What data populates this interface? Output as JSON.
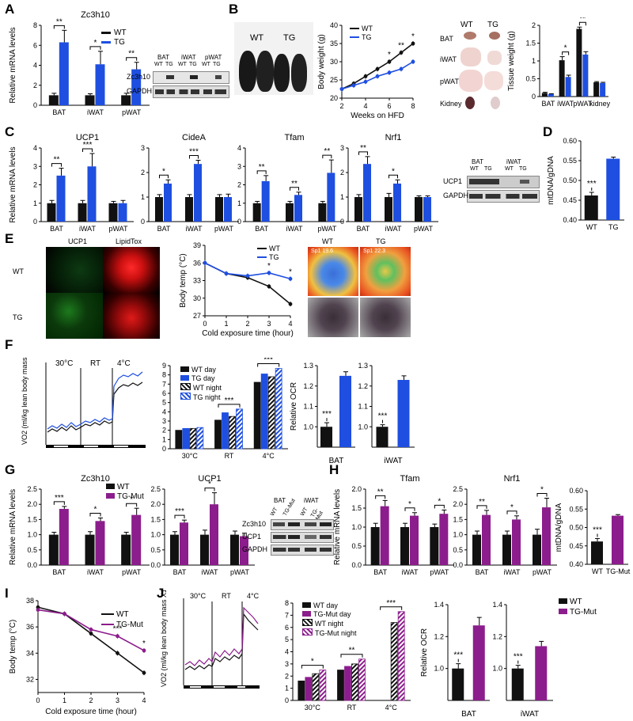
{
  "panels": {
    "A": {
      "letter": "A",
      "title": "Zc3h10",
      "ylabel": "Relative mRNA levels",
      "legend": [
        "WT",
        "TG"
      ],
      "blot": {
        "groups": [
          "BAT",
          "iWAT",
          "pWAT"
        ],
        "lanes": [
          "WT",
          "TG",
          "WT",
          "TG",
          "WT",
          "TG"
        ],
        "rows": [
          "Zc3h10",
          "GAPDH"
        ]
      }
    },
    "B": {
      "letter": "B",
      "photo_labels": [
        "WT",
        "TG"
      ],
      "tissue_labels_top": [
        "WT",
        "TG"
      ],
      "tissues": [
        "BAT",
        "iWAT",
        "pWAT",
        "Kidney"
      ]
    },
    "C": {
      "letter": "C",
      "ylabel": "Relative mRNA levels",
      "blot": {
        "groups": [
          "BAT",
          "iWAT"
        ],
        "lanes": [
          "WT",
          "TG",
          "WT",
          "TG"
        ],
        "rows": [
          "UCP1",
          "GAPDH"
        ]
      }
    },
    "D": {
      "letter": "D"
    },
    "E": {
      "letter": "E",
      "col_labels": [
        "UCP1",
        "LipidTox"
      ],
      "row_labels": [
        "WT",
        "TG"
      ],
      "thermal_labels": [
        "WT",
        "TG"
      ],
      "thermal_readouts": [
        "Sp1 19.6",
        "Sp1 22.3"
      ]
    },
    "F": {
      "letter": "F",
      "trace_ylabel": "VO2 (ml/kg lean body mass X10³)",
      "trace_conditions": [
        "30°C",
        "RT",
        "4°C"
      ],
      "bar_legend": [
        "WT day",
        "TG day",
        "WT night",
        "TG night"
      ]
    },
    "G": {
      "letter": "G",
      "ylabel": "Relative mRNA levels",
      "legend": [
        "WT",
        "TG-Mut"
      ],
      "blot": {
        "groups": [
          "BAT",
          "iWAT"
        ],
        "lanes": [
          "WT",
          "TG-Mut",
          "WT",
          "TG-Mut"
        ],
        "rows": [
          "Zc3h10",
          "UCP1",
          "GAPDH"
        ]
      }
    },
    "H": {
      "letter": "H",
      "ylabel": "Relative mRNA levels"
    },
    "I": {
      "letter": "I",
      "legend": [
        "WT",
        "TG-Mut"
      ]
    },
    "J": {
      "letter": "J",
      "trace_ylabel": "VO2 (ml/kg lean body mass X10³)",
      "trace_conditions": [
        "30°C",
        "RT",
        "4°C"
      ],
      "bar_legend": [
        "WT day",
        "TG-Mut day",
        "WT night",
        "TG-Mut night"
      ],
      "ocr_legend": [
        "WT",
        "TG-Mut"
      ]
    }
  },
  "colors": {
    "wt": "#111111",
    "tg": "#1f4fe0",
    "tgmut": "#8c1d8c"
  },
  "chart_data": [
    {
      "id": "A-zc3h10",
      "type": "bar",
      "title": "Zc3h10",
      "ylabel": "Relative mRNA levels",
      "categories": [
        "BAT",
        "iWAT",
        "pWAT"
      ],
      "ylim": [
        0,
        8
      ],
      "yticks": [
        0,
        2,
        4,
        6,
        8
      ],
      "series": [
        {
          "name": "WT",
          "values": [
            1,
            1,
            1
          ],
          "err": [
            0.2,
            0.15,
            0.2
          ]
        },
        {
          "name": "TG",
          "values": [
            6.3,
            4.1,
            3.6
          ],
          "err": [
            1.2,
            1.3,
            0.7
          ]
        }
      ],
      "significance": [
        "**",
        "*",
        "**"
      ]
    },
    {
      "id": "B-bodyweight",
      "type": "line",
      "xlabel": "Weeks on HFD",
      "ylabel": "Body weight (g)",
      "x": [
        2,
        3,
        4,
        5,
        6,
        7,
        8
      ],
      "xlim": [
        2,
        8
      ],
      "xticks": [
        2,
        4,
        6,
        8
      ],
      "ylim": [
        20,
        40
      ],
      "yticks": [
        20,
        25,
        30,
        35,
        40
      ],
      "series": [
        {
          "name": "WT",
          "values": [
            22.5,
            24.0,
            26.0,
            28.0,
            30.0,
            32.5,
            35.0
          ]
        },
        {
          "name": "TG",
          "values": [
            22.5,
            23.5,
            24.5,
            26.0,
            27.0,
            28.0,
            30.0
          ]
        }
      ],
      "significance_x": [
        6,
        7,
        8
      ],
      "significance": [
        "*",
        "**",
        "*"
      ]
    },
    {
      "id": "B-tissueweight",
      "type": "bar",
      "ylabel": "Tissue weight (g)",
      "categories": [
        "BAT",
        "iWAT",
        "pWAT",
        "kidney"
      ],
      "ylim": [
        0,
        2.0
      ],
      "yticks": [
        0,
        0.5,
        1.0,
        1.5,
        2.0
      ],
      "series": [
        {
          "name": "WT",
          "values": [
            0.1,
            1.02,
            1.9,
            0.4
          ],
          "err": [
            0.02,
            0.1,
            0.05,
            0.02
          ]
        },
        {
          "name": "TG",
          "values": [
            0.07,
            0.55,
            1.18,
            0.38
          ],
          "err": [
            0.01,
            0.05,
            0.08,
            0.02
          ]
        }
      ],
      "significance": [
        "",
        "*",
        "**",
        ""
      ]
    },
    {
      "id": "C-ucp1",
      "type": "bar",
      "title": "UCP1",
      "ylabel": "Relative mRNA levels",
      "categories": [
        "BAT",
        "iWAT",
        "pWAT"
      ],
      "ylim": [
        0,
        4
      ],
      "yticks": [
        0,
        1,
        2,
        3,
        4
      ],
      "series": [
        {
          "name": "WT",
          "values": [
            1,
            1,
            1
          ],
          "err": [
            0.15,
            0.15,
            0.1
          ]
        },
        {
          "name": "TG",
          "values": [
            2.5,
            3.0,
            1.0
          ],
          "err": [
            0.4,
            0.7,
            0.15
          ]
        }
      ],
      "significance": [
        "**",
        "***",
        ""
      ]
    },
    {
      "id": "C-cidea",
      "type": "bar",
      "title": "CideA",
      "categories": [
        "BAT",
        "iWAT",
        "pWAT"
      ],
      "ylim": [
        0,
        3
      ],
      "yticks": [
        0,
        1,
        2,
        3
      ],
      "series": [
        {
          "name": "WT",
          "values": [
            1,
            1,
            1
          ],
          "err": [
            0.1,
            0.1,
            0.1
          ]
        },
        {
          "name": "TG",
          "values": [
            1.55,
            2.35,
            1.0
          ],
          "err": [
            0.15,
            0.15,
            0.12
          ]
        }
      ],
      "significance": [
        "*",
        "***",
        ""
      ]
    },
    {
      "id": "C-tfam",
      "type": "bar",
      "title": "Tfam",
      "categories": [
        "BAT",
        "iWAT",
        "pWAT"
      ],
      "ylim": [
        0,
        4
      ],
      "yticks": [
        0,
        1,
        2,
        3,
        4
      ],
      "series": [
        {
          "name": "WT",
          "values": [
            1,
            1,
            1
          ],
          "err": [
            0.1,
            0.1,
            0.1
          ]
        },
        {
          "name": "TG",
          "values": [
            2.2,
            1.45,
            2.65
          ],
          "err": [
            0.3,
            0.15,
            0.7
          ]
        }
      ],
      "significance": [
        "**",
        "**",
        "**"
      ]
    },
    {
      "id": "C-nrf1",
      "type": "bar",
      "title": "Nrf1",
      "categories": [
        "BAT",
        "iWAT",
        "pWAT"
      ],
      "ylim": [
        0,
        3
      ],
      "yticks": [
        0,
        1,
        2,
        3
      ],
      "series": [
        {
          "name": "WT",
          "values": [
            1,
            1,
            1
          ],
          "err": [
            0.1,
            0.15,
            0.05
          ]
        },
        {
          "name": "TG",
          "values": [
            2.35,
            1.55,
            1.0
          ],
          "err": [
            0.3,
            0.15,
            0.05
          ]
        }
      ],
      "significance": [
        "**",
        "*",
        ""
      ]
    },
    {
      "id": "D-mtdna",
      "type": "bar",
      "ylabel": "mtDNA/gDNA",
      "categories": [
        "WT",
        "TG"
      ],
      "ylim": [
        0.4,
        0.6
      ],
      "yticks": [
        0.4,
        0.45,
        0.5,
        0.55,
        0.6
      ],
      "series": [
        {
          "name": "",
          "values": [
            0.462,
            0.555
          ],
          "err": [
            0.008,
            0.004
          ]
        }
      ],
      "significance": [
        "***"
      ]
    },
    {
      "id": "E-bodytemp",
      "type": "line",
      "xlabel": "Cold exposure time (hour)",
      "ylabel": "Body temp (°C)",
      "x": [
        0,
        1,
        2,
        3,
        4
      ],
      "xlim": [
        0,
        4
      ],
      "xticks": [
        0,
        1,
        2,
        3,
        4
      ],
      "ylim": [
        27,
        39
      ],
      "yticks": [
        27,
        30,
        33,
        36,
        39
      ],
      "series": [
        {
          "name": "WT",
          "values": [
            36.0,
            34.2,
            33.5,
            32.0,
            29.0
          ]
        },
        {
          "name": "TG",
          "values": [
            36.0,
            34.2,
            33.8,
            34.3,
            33.3
          ]
        }
      ],
      "significance_x": [
        3,
        4
      ],
      "significance": [
        "*",
        "*"
      ]
    },
    {
      "id": "F-vo2bars",
      "type": "bar",
      "categories": [
        "30°C",
        "RT",
        "4°C"
      ],
      "ylim": [
        0,
        9
      ],
      "yticks": [
        0,
        1,
        2,
        3,
        4,
        5,
        6,
        7,
        8,
        9
      ],
      "series": [
        {
          "name": "WT day",
          "values": [
            2.0,
            3.1,
            7.2
          ]
        },
        {
          "name": "TG day",
          "values": [
            2.2,
            3.9,
            8.1
          ]
        },
        {
          "name": "WT night",
          "values": [
            2.2,
            3.5,
            7.8
          ]
        },
        {
          "name": "TG night",
          "values": [
            2.3,
            4.3,
            8.7
          ]
        }
      ],
      "significance": [
        "",
        "***",
        "***"
      ]
    },
    {
      "id": "F-ocr-bat",
      "type": "bar",
      "ylabel": "Relative OCR",
      "xlabel": "BAT",
      "categories": [
        "WT",
        "TG"
      ],
      "ylim": [
        0.9,
        1.3
      ],
      "yticks": [
        1.0,
        1.1,
        1.2,
        1.3
      ],
      "series": [
        {
          "name": "",
          "values": [
            1.0,
            1.25
          ],
          "err": [
            0.02,
            0.02
          ]
        }
      ],
      "significance": [
        "***"
      ]
    },
    {
      "id": "F-ocr-iwat",
      "type": "bar",
      "xlabel": "iWAT",
      "categories": [
        "WT",
        "TG"
      ],
      "ylim": [
        0.9,
        1.3
      ],
      "yticks": [
        1.0,
        1.1,
        1.2,
        1.3
      ],
      "series": [
        {
          "name": "",
          "values": [
            1.0,
            1.23
          ],
          "err": [
            0.01,
            0.02
          ]
        }
      ],
      "significance": [
        "***"
      ]
    },
    {
      "id": "G-zc3h10",
      "type": "bar",
      "title": "Zc3h10",
      "ylabel": "Relative mRNA levels",
      "categories": [
        "BAT",
        "iWAT",
        "pWAT"
      ],
      "ylim": [
        0,
        2.5
      ],
      "yticks": [
        0,
        0.5,
        1.0,
        1.5,
        2.0,
        2.5
      ],
      "series": [
        {
          "name": "WT",
          "values": [
            1,
            1,
            1
          ],
          "err": [
            0.08,
            0.1,
            0.08
          ]
        },
        {
          "name": "TG-Mut",
          "values": [
            1.85,
            1.45,
            1.65
          ],
          "err": [
            0.08,
            0.1,
            0.22
          ]
        }
      ],
      "significance": [
        "***",
        "*",
        "*"
      ]
    },
    {
      "id": "G-ucp1",
      "type": "bar",
      "title": "UCP1",
      "categories": [
        "BAT",
        "iWAT",
        "pWAT"
      ],
      "ylim": [
        0,
        2.5
      ],
      "yticks": [
        0,
        0.5,
        1.0,
        1.5,
        2.0,
        2.5
      ],
      "series": [
        {
          "name": "WT",
          "values": [
            1,
            1,
            1
          ],
          "err": [
            0.1,
            0.15,
            0.12
          ]
        },
        {
          "name": "TG-Mut",
          "values": [
            1.4,
            2.0,
            0.95
          ],
          "err": [
            0.08,
            0.38,
            0.1
          ]
        }
      ],
      "significance": [
        "***",
        "*",
        ""
      ]
    },
    {
      "id": "H-tfam",
      "type": "bar",
      "title": "Tfam",
      "ylabel": "Relative mRNA levels",
      "categories": [
        "BAT",
        "iWAT",
        "pWAT"
      ],
      "ylim": [
        0,
        2.0
      ],
      "yticks": [
        0,
        0.5,
        1.0,
        1.5,
        2.0
      ],
      "series": [
        {
          "name": "WT",
          "values": [
            1,
            1,
            1
          ],
          "err": [
            0.1,
            0.1,
            0.08
          ]
        },
        {
          "name": "TG-Mut",
          "values": [
            1.55,
            1.3,
            1.35
          ],
          "err": [
            0.15,
            0.08,
            0.1
          ]
        }
      ],
      "significance": [
        "**",
        "*",
        "*"
      ]
    },
    {
      "id": "H-nrf1",
      "type": "bar",
      "title": "Nrf1",
      "categories": [
        "BAT",
        "iWAT",
        "pWAT"
      ],
      "ylim": [
        0,
        2.5
      ],
      "yticks": [
        0,
        0.5,
        1.0,
        1.5,
        2.0,
        2.5
      ],
      "series": [
        {
          "name": "WT",
          "values": [
            1,
            1,
            1
          ],
          "err": [
            0.12,
            0.12,
            0.18
          ]
        },
        {
          "name": "TG-Mut",
          "values": [
            1.65,
            1.5,
            1.9
          ],
          "err": [
            0.15,
            0.12,
            0.3
          ]
        }
      ],
      "significance": [
        "**",
        "*",
        "*"
      ]
    },
    {
      "id": "H-mtdna",
      "type": "bar",
      "ylabel": "mtDNA/gDNA",
      "categories": [
        "WT",
        "TG-Mut"
      ],
      "ylim": [
        0.4,
        0.6
      ],
      "yticks": [
        0.4,
        0.45,
        0.5,
        0.55,
        0.6
      ],
      "series": [
        {
          "name": "",
          "values": [
            0.462,
            0.532
          ],
          "err": [
            0.008,
            0.003
          ]
        }
      ],
      "significance": [
        "***"
      ]
    },
    {
      "id": "I-bodytemp",
      "type": "line",
      "xlabel": "Cold exposure time (hour)",
      "ylabel": "Body temp (°C)",
      "x": [
        0,
        1,
        2,
        3,
        4
      ],
      "xlim": [
        0,
        4
      ],
      "xticks": [
        0,
        1,
        2,
        3,
        4
      ],
      "ylim": [
        31,
        38
      ],
      "yticks": [
        32,
        34,
        36,
        38
      ],
      "series": [
        {
          "name": "WT",
          "values": [
            37.5,
            37.0,
            35.5,
            34.0,
            32.5
          ]
        },
        {
          "name": "TG-Mut",
          "values": [
            37.3,
            37.0,
            35.8,
            35.3,
            34.2
          ]
        }
      ],
      "significance_x": [
        3,
        4
      ],
      "significance": [
        "***",
        "*"
      ]
    },
    {
      "id": "J-vo2bars",
      "type": "bar",
      "categories": [
        "30°C",
        "RT",
        "4°C"
      ],
      "ylim": [
        0,
        8
      ],
      "yticks": [
        0,
        1,
        2,
        3,
        4,
        5,
        6,
        7,
        8
      ],
      "series": [
        {
          "name": "WT day",
          "values": [
            1.6,
            2.5,
            null
          ]
        },
        {
          "name": "TG-Mut day",
          "values": [
            1.9,
            2.8,
            null
          ]
        },
        {
          "name": "WT night",
          "values": [
            2.2,
            3.0,
            6.4
          ]
        },
        {
          "name": "TG-Mut night",
          "values": [
            2.5,
            3.4,
            7.3
          ]
        }
      ],
      "significance": [
        "*",
        "**",
        "***"
      ]
    },
    {
      "id": "J-ocr-bat",
      "type": "bar",
      "ylabel": "Relative OCR",
      "xlabel": "BAT",
      "categories": [
        "WT",
        "TG-Mut"
      ],
      "ylim": [
        0.8,
        1.4
      ],
      "yticks": [
        1.0,
        1.2,
        1.4
      ],
      "series": [
        {
          "name": "",
          "values": [
            1.0,
            1.27
          ],
          "err": [
            0.03,
            0.05
          ]
        }
      ],
      "significance": [
        "***"
      ]
    },
    {
      "id": "J-ocr-iwat",
      "type": "bar",
      "xlabel": "iWAT",
      "categories": [
        "WT",
        "TG-Mut"
      ],
      "ylim": [
        0.8,
        1.4
      ],
      "yticks": [
        1.0,
        1.2,
        1.4
      ],
      "series": [
        {
          "name": "",
          "values": [
            1.0,
            1.14
          ],
          "err": [
            0.02,
            0.03
          ]
        }
      ],
      "significance": [
        "***"
      ]
    }
  ]
}
